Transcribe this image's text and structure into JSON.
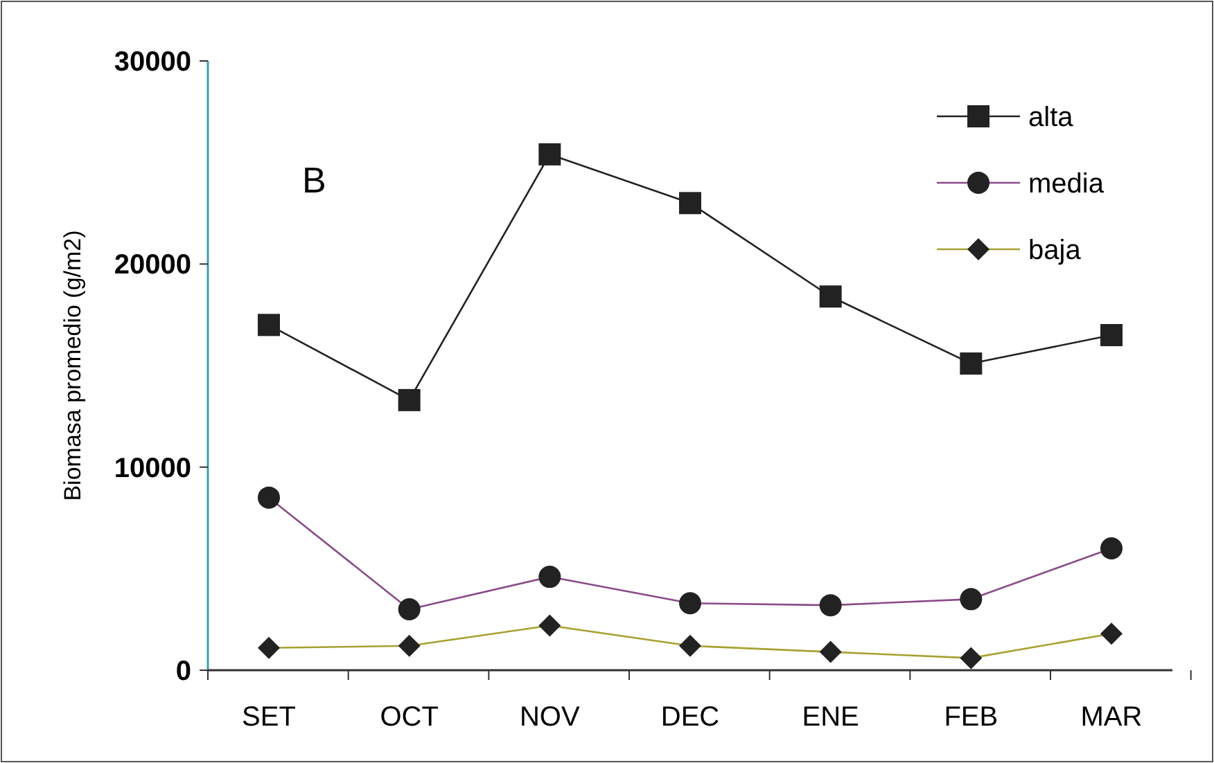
{
  "chart_data": {
    "type": "line",
    "ylabel": "Biomasa promedio (g/m2)",
    "categories": [
      "SET",
      "OCT",
      "NOV",
      "DEC",
      "ENE",
      "FEB",
      "MAR"
    ],
    "series": [
      {
        "name": "alta",
        "color": "#222222",
        "marker": "square",
        "values": [
          17000,
          13300,
          25400,
          23000,
          18400,
          15100,
          16500
        ]
      },
      {
        "name": "media",
        "color": "#8a4a8a",
        "marker": "circle",
        "values": [
          8500,
          3000,
          4600,
          3300,
          3200,
          3500,
          6000
        ]
      },
      {
        "name": "baja",
        "color": "#a8a030",
        "marker": "diamond",
        "values": [
          1100,
          1200,
          2200,
          1200,
          900,
          600,
          1800
        ]
      }
    ],
    "ylim": [
      0,
      30000
    ],
    "yticks": [
      0,
      10000,
      20000,
      30000
    ],
    "legend": "top right",
    "grid": false,
    "annotations": [
      "B"
    ]
  }
}
